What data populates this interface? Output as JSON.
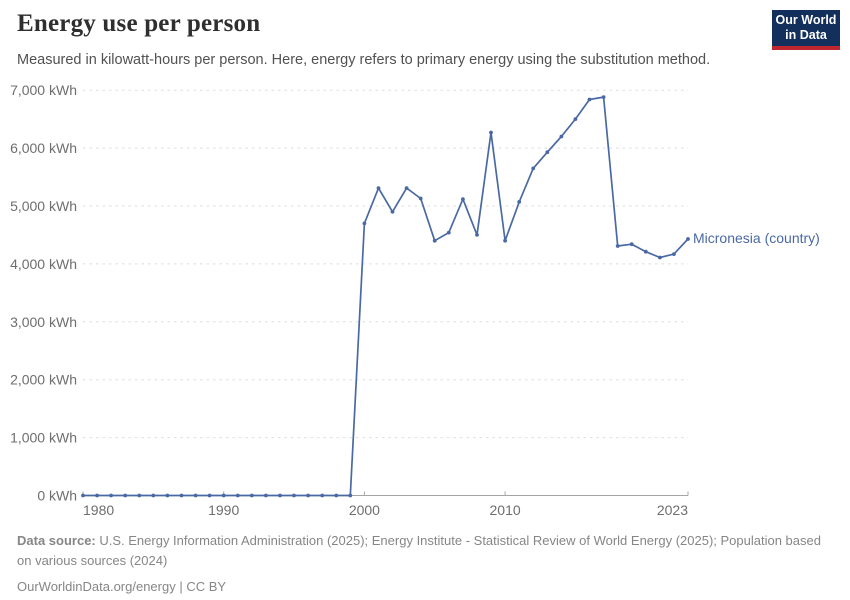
{
  "header": {
    "title": "Energy use per person",
    "subtitle": "Measured in kilowatt-hours per person. Here, energy refers to primary energy using the substitution method."
  },
  "logo": {
    "line1": "Our World",
    "line2": "in Data"
  },
  "chart_data": {
    "type": "line",
    "title": "Energy use per person",
    "unit": "kWh",
    "xlabel": "",
    "ylabel": "",
    "xlim": [
      1980,
      2023
    ],
    "ylim": [
      0,
      7000
    ],
    "grid": "horizontal-dashed",
    "legend_position": "label-right-of-line-end",
    "x_ticks": [
      {
        "value": 1980,
        "label": "1980"
      },
      {
        "value": 1990,
        "label": "1990"
      },
      {
        "value": 2000,
        "label": "2000"
      },
      {
        "value": 2010,
        "label": "2010"
      },
      {
        "value": 2023,
        "label": "2023"
      }
    ],
    "y_ticks": [
      {
        "value": 0,
        "label": "0 kWh"
      },
      {
        "value": 1000,
        "label": "1,000 kWh"
      },
      {
        "value": 2000,
        "label": "2,000 kWh"
      },
      {
        "value": 3000,
        "label": "3,000 kWh"
      },
      {
        "value": 4000,
        "label": "4,000 kWh"
      },
      {
        "value": 5000,
        "label": "5,000 kWh"
      },
      {
        "value": 6000,
        "label": "6,000 kWh"
      },
      {
        "value": 7000,
        "label": "7,000 kWh"
      }
    ],
    "series": [
      {
        "name": "Micronesia (country)",
        "color": "#4a69a4",
        "x": [
          1980,
          1981,
          1982,
          1983,
          1984,
          1985,
          1986,
          1987,
          1988,
          1989,
          1990,
          1991,
          1992,
          1993,
          1994,
          1995,
          1996,
          1997,
          1998,
          1999,
          2000,
          2001,
          2002,
          2003,
          2004,
          2005,
          2006,
          2007,
          2008,
          2009,
          2010,
          2011,
          2012,
          2013,
          2014,
          2015,
          2016,
          2017,
          2018,
          2019,
          2020,
          2021,
          2022,
          2023
        ],
        "values": [
          0,
          0,
          0,
          0,
          0,
          0,
          0,
          0,
          0,
          0,
          0,
          0,
          0,
          0,
          0,
          0,
          0,
          0,
          0,
          0,
          4700,
          5310,
          4900,
          5310,
          5130,
          4400,
          4540,
          5120,
          4500,
          6270,
          4400,
          5070,
          5650,
          5930,
          6200,
          6500,
          6840,
          6880,
          4310,
          4340,
          4210,
          4110,
          4170,
          4430
        ]
      }
    ]
  },
  "footer": {
    "source_label": "Data source:",
    "source_line1": " U.S. Energy Information Administration (2025); Energy Institute - Statistical Review of World Energy (2025); Population based",
    "source_line2": "on various sources (2024)",
    "license": "OurWorldinData.org/energy | CC BY"
  },
  "colors": {
    "line": "#4a69a4",
    "grid": "#dddddd",
    "axis": "#a5a5a5",
    "tick_label": "#6e6e6e",
    "logo_bg": "#12305b",
    "logo_accent": "#c0262e"
  }
}
